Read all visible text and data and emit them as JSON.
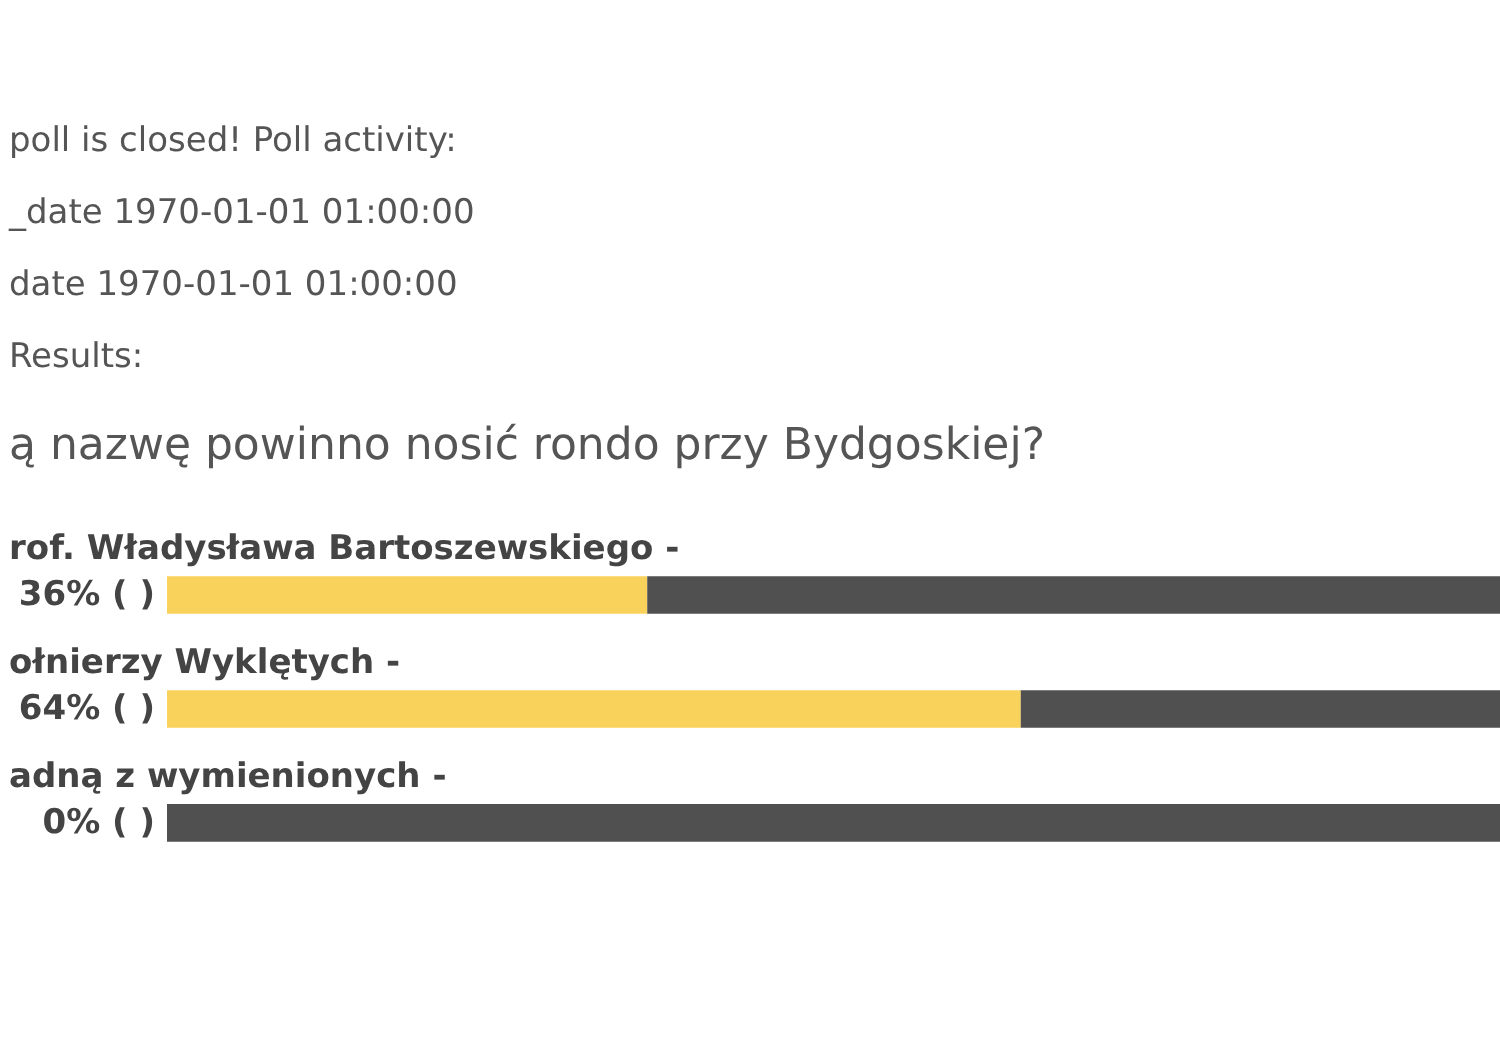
{
  "chart_data": {
    "type": "bar",
    "orientation": "horizontal",
    "stacked": true,
    "title": "ą nazwę powinno nosić rondo przy Bydgoskiej?",
    "annotations": [
      "poll is closed! Poll activity:",
      "_date 1970-01-01 01:00:00",
      "date 1970-01-01 01:00:00",
      "Results:"
    ],
    "categories": [
      "rof. Władysława Bartoszewskiego -",
      "ołnierzy Wyklętych -",
      "adną z wymienionych -"
    ],
    "series": [
      {
        "color": "#f9d25b",
        "values": [
          36,
          64,
          0
        ],
        "value_labels": [
          "36% ( )",
          "64% ( )",
          "0% ( )"
        ]
      },
      {
        "color": "#505050",
        "values": [
          64,
          36,
          100
        ]
      }
    ],
    "xlim": [
      0,
      100
    ],
    "tick_labels": false
  }
}
